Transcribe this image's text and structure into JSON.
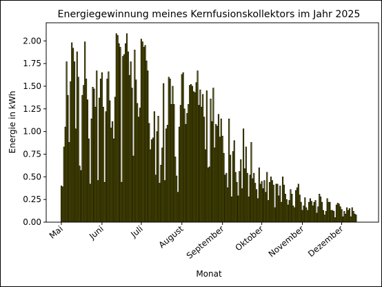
{
  "chart_data": {
    "type": "bar",
    "title": "Energiegewinnung meines Kernfusionskollektors im Jahr 2025",
    "xlabel": "Monat",
    "ylabel": "Energie in kWh",
    "ylim": [
      0,
      2.2
    ],
    "y_ticks": [
      "0.00",
      "0.25",
      "0.50",
      "0.75",
      "1.00",
      "1.25",
      "1.50",
      "1.75",
      "2.00"
    ],
    "x_ticks": [
      {
        "label": "Mai",
        "day": 0
      },
      {
        "label": "Juni",
        "day": 31
      },
      {
        "label": "Juli",
        "day": 61
      },
      {
        "label": "August",
        "day": 92
      },
      {
        "label": "September",
        "day": 123
      },
      {
        "label": "Oktober",
        "day": 153
      },
      {
        "label": "November",
        "day": 184
      },
      {
        "label": "Dezember",
        "day": 214
      }
    ],
    "grid": false,
    "legend": "none",
    "bar_color": "#6b6800",
    "bar_edge": "#000000",
    "values": [
      0.4,
      0.39,
      0.83,
      1.05,
      1.77,
      1.4,
      0.88,
      1.55,
      1.98,
      1.92,
      1.77,
      1.03,
      1.88,
      1.6,
      0.62,
      0.57,
      1.4,
      1.51,
      1.99,
      1.58,
      1.35,
      0.92,
      0.42,
      1.14,
      1.49,
      1.47,
      1.27,
      1.67,
      0.46,
      1.37,
      1.58,
      1.65,
      1.27,
      0.44,
      1.22,
      1.58,
      1.66,
      1.34,
      1.04,
      1.11,
      0.92,
      1.38,
      2.08,
      2.06,
      1.97,
      1.93,
      0.44,
      1.83,
      1.85,
      1.97,
      2.08,
      1.88,
      1.62,
      1.77,
      1.48,
      0.73,
      1.9,
      1.57,
      1.31,
      1.16,
      1.26,
      2.02,
      1.99,
      1.93,
      1.95,
      1.78,
      1.67,
      1.09,
      0.8,
      0.91,
      0.93,
      1.22,
      0.52,
      1.0,
      1.17,
      0.43,
      0.63,
      0.82,
      1.53,
      0.46,
      1.03,
      1.07,
      1.6,
      1.58,
      1.3,
      1.5,
      1.3,
      0.72,
      0.51,
      0.33,
      1.05,
      1.29,
      1.63,
      1.65,
      1.25,
      1.08,
      1.2,
      1.3,
      1.51,
      1.52,
      1.5,
      1.44,
      1.43,
      1.54,
      1.67,
      1.29,
      1.46,
      1.27,
      1.41,
      1.16,
      0.8,
      1.45,
      0.6,
      0.61,
      1.36,
      1.11,
      1.48,
      0.82,
      1.08,
      1.06,
      1.19,
      0.94,
      1.14,
      0.95,
      0.76,
      0.52,
      0.54,
      0.38,
      1.14,
      0.74,
      0.28,
      0.78,
      0.9,
      0.55,
      0.44,
      0.29,
      0.56,
      0.69,
      0.37,
      1.03,
      0.59,
      0.83,
      0.54,
      0.28,
      0.52,
      0.88,
      0.48,
      0.54,
      0.43,
      0.36,
      0.26,
      0.6,
      0.42,
      0.45,
      0.37,
      0.46,
      0.33,
      0.55,
      0.24,
      0.44,
      0.5,
      0.46,
      0.41,
      0.16,
      0.42,
      0.42,
      0.29,
      0.4,
      0.22,
      0.5,
      0.41,
      0.31,
      0.25,
      0.19,
      0.24,
      0.36,
      0.31,
      0.18,
      0.16,
      0.35,
      0.38,
      0.42,
      0.3,
      0.22,
      0.13,
      0.18,
      0.27,
      0.16,
      0.13,
      0.22,
      0.26,
      0.23,
      0.18,
      0.22,
      0.24,
      0.1,
      0.17,
      0.31,
      0.28,
      0.22,
      0.13,
      0.08,
      0.12,
      0.26,
      0.22,
      0.22,
      0.13,
      0.13,
      0.12,
      0.05,
      0.19,
      0.21,
      0.2,
      0.17,
      0.14,
      0.06,
      0.12,
      0.09,
      0.16,
      0.13,
      0.15,
      0.06,
      0.16,
      0.12,
      0.09,
      0.08
    ]
  }
}
